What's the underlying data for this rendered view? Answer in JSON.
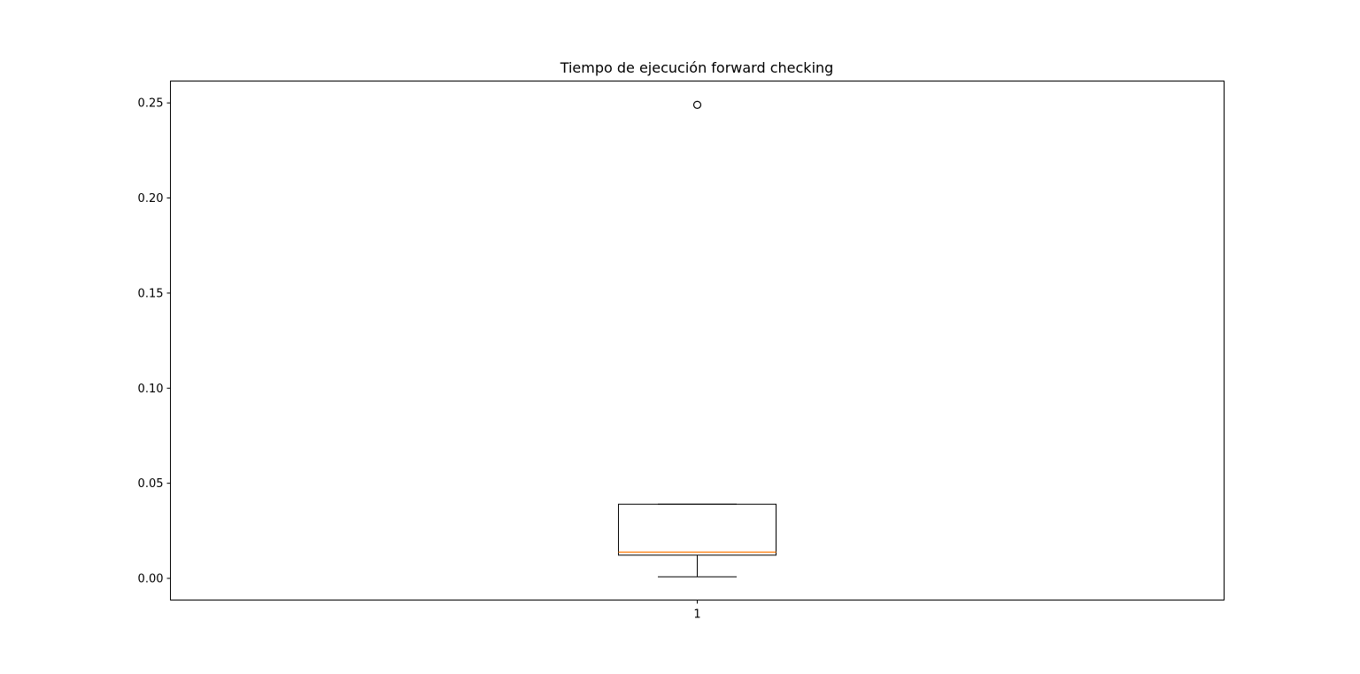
{
  "chart_data": {
    "type": "box",
    "title": "Tiempo de ejecución forward checking",
    "xlabel": "",
    "ylabel": "",
    "categories": [
      "1"
    ],
    "ylim": [
      -0.0114,
      0.2615
    ],
    "yticks": [
      "0.00",
      "0.05",
      "0.10",
      "0.15",
      "0.20",
      "0.25"
    ],
    "grid": false,
    "boxes": [
      {
        "category": "1",
        "whisker_low": 0.0008,
        "q1": 0.0122,
        "median": 0.0138,
        "q3": 0.039,
        "whisker_high": 0.039,
        "outliers": [
          0.249
        ]
      }
    ],
    "colors": {
      "box": "#000000",
      "median": "#ff7f0e",
      "background": "#ffffff"
    }
  }
}
